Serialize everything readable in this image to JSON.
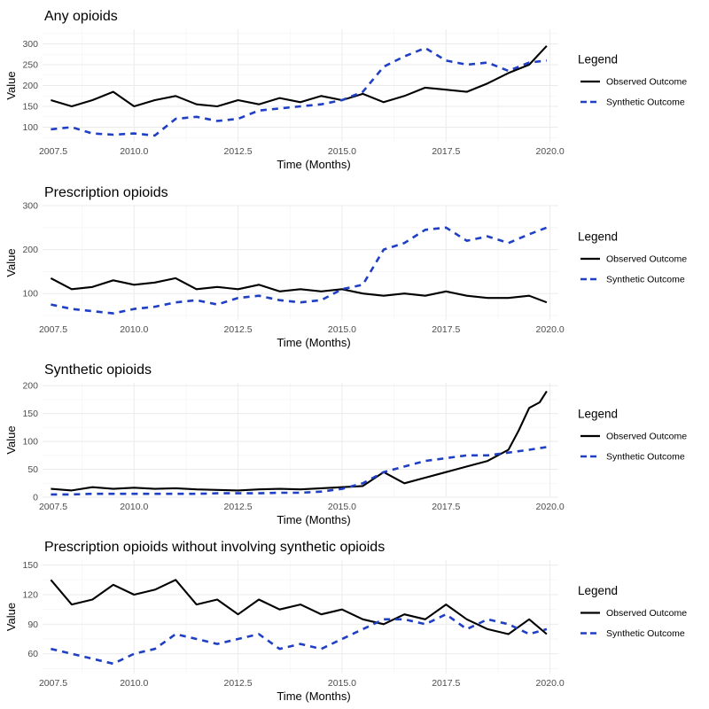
{
  "colors": {
    "observed": "#000000",
    "synthetic": "#1f3fc4",
    "grid_major": "#ebebeb",
    "grid_minor": "#f5f5f5"
  },
  "legend": {
    "title": "Legend",
    "items": [
      "Observed Outcome",
      "Synthetic Outcome"
    ]
  },
  "chart_data": [
    {
      "type": "line",
      "title": "Any opioids",
      "xlabel": "Time (Months)",
      "ylabel": "Value",
      "xlim": [
        2007.8,
        2020.2
      ],
      "ylim": [
        65,
        335
      ],
      "xticks": [
        "2007.5",
        "2010.0",
        "2012.5",
        "2015.0",
        "2017.5",
        "2020.0"
      ],
      "yticks": [
        "100",
        "150",
        "200",
        "250",
        "300"
      ],
      "grid": true,
      "legend_position": "right",
      "series": [
        {
          "name": "Observed Outcome",
          "style": "solid",
          "x": [
            2008.0,
            2008.5,
            2009.0,
            2009.5,
            2010.0,
            2010.5,
            2011.0,
            2011.5,
            2012.0,
            2012.5,
            2013.0,
            2013.5,
            2014.0,
            2014.5,
            2015.0,
            2015.5,
            2016.0,
            2016.5,
            2017.0,
            2017.5,
            2018.0,
            2018.5,
            2019.0,
            2019.5,
            2019.92
          ],
          "y": [
            165,
            150,
            165,
            185,
            150,
            165,
            175,
            155,
            150,
            165,
            155,
            170,
            160,
            175,
            165,
            180,
            160,
            175,
            195,
            190,
            185,
            205,
            230,
            250,
            295
          ]
        },
        {
          "name": "Synthetic Outcome",
          "style": "dashed",
          "x": [
            2008.0,
            2008.5,
            2009.0,
            2009.5,
            2010.0,
            2010.5,
            2011.0,
            2011.5,
            2012.0,
            2012.5,
            2013.0,
            2013.5,
            2014.0,
            2014.5,
            2015.0,
            2015.5,
            2016.0,
            2016.5,
            2017.0,
            2017.5,
            2018.0,
            2018.5,
            2019.0,
            2019.5,
            2019.92
          ],
          "y": [
            95,
            100,
            85,
            82,
            85,
            80,
            120,
            125,
            115,
            120,
            140,
            145,
            150,
            155,
            165,
            185,
            245,
            270,
            290,
            260,
            250,
            255,
            235,
            255,
            260
          ]
        }
      ]
    },
    {
      "type": "line",
      "title": "Prescription opioids",
      "xlabel": "Time (Months)",
      "ylabel": "Value",
      "xlim": [
        2007.8,
        2020.2
      ],
      "ylim": [
        40,
        300
      ],
      "xticks": [
        "2007.5",
        "2010.0",
        "2012.5",
        "2015.0",
        "2017.5",
        "2020.0"
      ],
      "yticks": [
        "100",
        "200",
        "300"
      ],
      "grid": true,
      "legend_position": "right",
      "series": [
        {
          "name": "Observed Outcome",
          "style": "solid",
          "x": [
            2008.0,
            2008.5,
            2009.0,
            2009.5,
            2010.0,
            2010.5,
            2011.0,
            2011.5,
            2012.0,
            2012.5,
            2013.0,
            2013.5,
            2014.0,
            2014.5,
            2015.0,
            2015.5,
            2016.0,
            2016.5,
            2017.0,
            2017.5,
            2018.0,
            2018.5,
            2019.0,
            2019.5,
            2019.92
          ],
          "y": [
            135,
            110,
            115,
            130,
            120,
            125,
            135,
            110,
            115,
            110,
            120,
            105,
            110,
            105,
            110,
            100,
            95,
            100,
            95,
            105,
            95,
            90,
            90,
            95,
            80
          ]
        },
        {
          "name": "Synthetic Outcome",
          "style": "dashed",
          "x": [
            2008.0,
            2008.5,
            2009.0,
            2009.5,
            2010.0,
            2010.5,
            2011.0,
            2011.5,
            2012.0,
            2012.5,
            2013.0,
            2013.5,
            2014.0,
            2014.5,
            2015.0,
            2015.5,
            2016.0,
            2016.5,
            2017.0,
            2017.5,
            2018.0,
            2018.5,
            2019.0,
            2019.5,
            2019.92
          ],
          "y": [
            75,
            65,
            60,
            55,
            65,
            70,
            80,
            85,
            75,
            90,
            95,
            85,
            80,
            85,
            110,
            120,
            200,
            215,
            245,
            250,
            220,
            230,
            215,
            235,
            250
          ]
        }
      ]
    },
    {
      "type": "line",
      "title": "Synthetic opioids",
      "xlabel": "Time (Months)",
      "ylabel": "Value",
      "xlim": [
        2007.8,
        2020.2
      ],
      "ylim": [
        0,
        205
      ],
      "xticks": [
        "2007.5",
        "2010.0",
        "2012.5",
        "2015.0",
        "2017.5",
        "2020.0"
      ],
      "yticks": [
        "0",
        "50",
        "100",
        "150",
        "200"
      ],
      "grid": true,
      "legend_position": "right",
      "series": [
        {
          "name": "Observed Outcome",
          "style": "solid",
          "x": [
            2008.0,
            2008.5,
            2009.0,
            2009.5,
            2010.0,
            2010.5,
            2011.0,
            2011.5,
            2012.0,
            2012.5,
            2013.0,
            2013.5,
            2014.0,
            2014.5,
            2015.0,
            2015.5,
            2016.0,
            2016.5,
            2017.0,
            2017.5,
            2018.0,
            2018.5,
            2019.0,
            2019.25,
            2019.5,
            2019.75,
            2019.92
          ],
          "y": [
            15,
            12,
            18,
            15,
            17,
            15,
            16,
            14,
            13,
            12,
            14,
            15,
            14,
            16,
            18,
            20,
            45,
            25,
            35,
            45,
            55,
            65,
            85,
            120,
            160,
            170,
            190
          ]
        },
        {
          "name": "Synthetic Outcome",
          "style": "dashed",
          "x": [
            2008.0,
            2008.5,
            2009.0,
            2009.5,
            2010.0,
            2010.5,
            2011.0,
            2011.5,
            2012.0,
            2012.5,
            2013.0,
            2013.5,
            2014.0,
            2014.5,
            2015.0,
            2015.5,
            2016.0,
            2016.5,
            2017.0,
            2017.5,
            2018.0,
            2018.5,
            2019.0,
            2019.5,
            2019.92
          ],
          "y": [
            5,
            5,
            6,
            6,
            6,
            6,
            6,
            6,
            7,
            7,
            7,
            8,
            8,
            10,
            15,
            25,
            45,
            55,
            65,
            70,
            75,
            75,
            80,
            85,
            90
          ]
        }
      ]
    },
    {
      "type": "line",
      "title": "Prescription opioids without involving synthetic opioids",
      "xlabel": "Time (Months)",
      "ylabel": "Value",
      "xlim": [
        2007.8,
        2020.2
      ],
      "ylim": [
        40,
        155
      ],
      "xticks": [
        "2007.5",
        "2010.0",
        "2012.5",
        "2015.0",
        "2017.5",
        "2020.0"
      ],
      "yticks": [
        "60",
        "90",
        "120",
        "150"
      ],
      "grid": true,
      "legend_position": "right",
      "series": [
        {
          "name": "Observed Outcome",
          "style": "solid",
          "x": [
            2008.0,
            2008.5,
            2009.0,
            2009.5,
            2010.0,
            2010.5,
            2011.0,
            2011.5,
            2012.0,
            2012.5,
            2013.0,
            2013.5,
            2014.0,
            2014.5,
            2015.0,
            2015.5,
            2016.0,
            2016.5,
            2017.0,
            2017.5,
            2018.0,
            2018.5,
            2019.0,
            2019.5,
            2019.92
          ],
          "y": [
            135,
            110,
            115,
            130,
            120,
            125,
            135,
            110,
            115,
            100,
            115,
            105,
            110,
            100,
            105,
            95,
            90,
            100,
            95,
            110,
            95,
            85,
            80,
            95,
            80
          ]
        },
        {
          "name": "Synthetic Outcome",
          "style": "dashed",
          "x": [
            2008.0,
            2008.5,
            2009.0,
            2009.5,
            2010.0,
            2010.5,
            2011.0,
            2011.5,
            2012.0,
            2012.5,
            2013.0,
            2013.5,
            2014.0,
            2014.5,
            2015.0,
            2015.5,
            2016.0,
            2016.5,
            2017.0,
            2017.5,
            2018.0,
            2018.5,
            2019.0,
            2019.5,
            2019.92
          ],
          "y": [
            65,
            60,
            55,
            50,
            60,
            65,
            80,
            75,
            70,
            75,
            80,
            65,
            70,
            65,
            75,
            85,
            95,
            95,
            90,
            100,
            85,
            95,
            90,
            80,
            85
          ]
        }
      ]
    }
  ]
}
